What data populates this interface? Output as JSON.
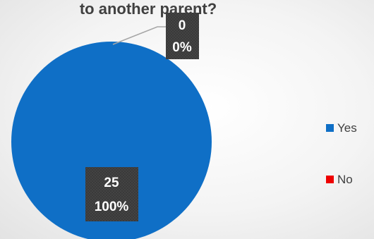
{
  "chart_data": {
    "type": "pie",
    "title": "to another parent?",
    "categories": [
      "Yes",
      "No"
    ],
    "values": [
      25,
      0
    ],
    "percent_labels": [
      "100%",
      "0%"
    ],
    "colors": [
      "#0F6FC6",
      "#EE0000"
    ],
    "legend_position": "right",
    "data_labels": true
  }
}
